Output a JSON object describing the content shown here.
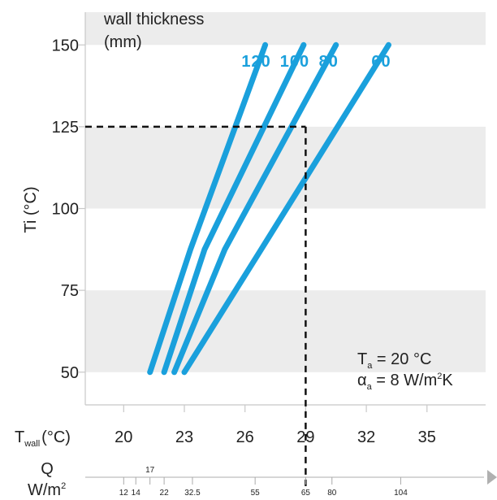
{
  "chart_data": {
    "type": "line",
    "title": "",
    "xlabel": "T",
    "xlabel_sub": "wall",
    "xlabel_unit": "(°C)",
    "ylabel": "Ti (°C)",
    "legend_title_line1": "wall thickness",
    "legend_title_line2": "(mm)",
    "xlim": [
      18.1,
      37.9
    ],
    "ylim": [
      40,
      160
    ],
    "x_ticks": [
      20,
      23,
      26,
      29,
      32,
      35
    ],
    "x_tick_labels": [
      "20",
      "23",
      "26",
      "29",
      "32",
      "35"
    ],
    "y_ticks": [
      50,
      75,
      100,
      125,
      150
    ],
    "y_tick_labels": [
      "50",
      "75",
      "100",
      "125",
      "150"
    ],
    "y_bands": [
      [
        50,
        75
      ],
      [
        100,
        125
      ],
      [
        150,
        160
      ]
    ],
    "grid": false,
    "series_color": "#1aa0dc",
    "series": [
      {
        "name": "120",
        "x": [
          21.3,
          23.3,
          27.0
        ],
        "y": [
          50,
          87.5,
          150
        ]
      },
      {
        "name": "100",
        "x": [
          22.0,
          24.0,
          28.9
        ],
        "y": [
          50,
          87.5,
          150
        ]
      },
      {
        "name": "80",
        "x": [
          22.5,
          25.0,
          30.5
        ],
        "y": [
          50,
          87.5,
          150
        ]
      },
      {
        "name": "60",
        "x": [
          23.0,
          26.8,
          33.1
        ],
        "y": [
          50,
          87.5,
          150
        ]
      }
    ],
    "reference_point": {
      "x": 29,
      "y": 125
    },
    "q_axis": {
      "label_line1": "Q",
      "label_line2": "W/m",
      "label_sup": "2",
      "ticks": [
        "12",
        "14",
        "17",
        "22",
        "32.5",
        "55",
        "65",
        "80",
        "104"
      ],
      "tick_x": [
        20.0,
        20.6,
        21.3,
        22.0,
        23.4,
        26.5,
        29.0,
        30.3,
        33.7
      ]
    },
    "annotation": {
      "ta_symbol": "T",
      "ta_sub": "a",
      "ta_rest": " = 20 °C",
      "alpha_symbol": "α",
      "alpha_sub": "a",
      "alpha_rest": " = 8 W/m",
      "alpha_sup": "2",
      "alpha_end": "K"
    }
  }
}
